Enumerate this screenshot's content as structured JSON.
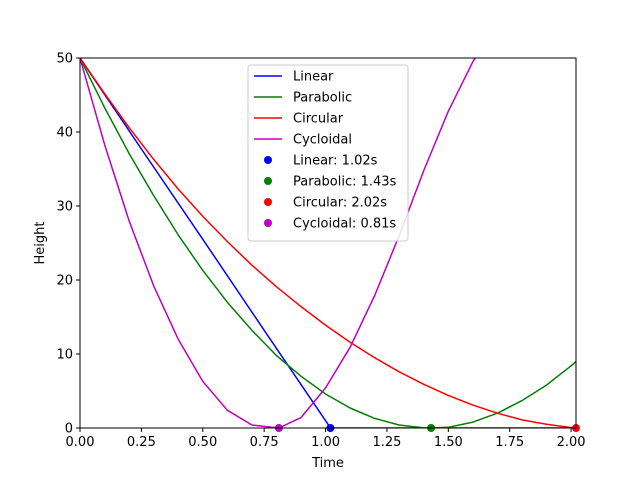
{
  "chart_data": {
    "type": "line",
    "title": "",
    "xlabel": "Time",
    "ylabel": "Height",
    "xlim": [
      0,
      2.02
    ],
    "ylim": [
      0,
      50
    ],
    "xticks": [
      "0.00",
      "0.25",
      "0.50",
      "0.75",
      "1.00",
      "1.25",
      "1.50",
      "1.75",
      "2.00"
    ],
    "yticks": [
      "0",
      "10",
      "20",
      "30",
      "40",
      "50"
    ],
    "grid": false,
    "legend_position": "top-center",
    "series": [
      {
        "name": "Linear",
        "color": "#0000ff",
        "x": [
          0,
          0.25,
          0.5,
          0.75,
          1.0,
          1.02,
          1.5,
          2.02
        ],
        "y": [
          50,
          37.7,
          25.5,
          13.2,
          1.0,
          0,
          0,
          0
        ]
      },
      {
        "name": "Parabolic",
        "color": "#008000",
        "x": [
          0,
          0.1,
          0.2,
          0.3,
          0.4,
          0.5,
          0.6,
          0.7,
          0.8,
          0.9,
          1.0,
          1.1,
          1.2,
          1.3,
          1.4,
          1.43,
          1.5,
          1.6,
          1.7,
          1.8,
          1.9,
          2.0,
          2.02
        ],
        "y": [
          50,
          43.3,
          37.1,
          31.4,
          26.1,
          21.3,
          17.0,
          13.2,
          9.8,
          7.0,
          4.6,
          2.7,
          1.3,
          0.4,
          0.02,
          0,
          0.1,
          0.8,
          2.0,
          3.7,
          5.8,
          8.4,
          9.0
        ]
      },
      {
        "name": "Circular",
        "color": "#ff0000",
        "x": [
          0,
          0.1,
          0.2,
          0.3,
          0.4,
          0.5,
          0.6,
          0.7,
          0.8,
          0.9,
          1.0,
          1.1,
          1.2,
          1.3,
          1.4,
          1.5,
          1.6,
          1.7,
          1.8,
          1.9,
          2.0,
          2.02
        ],
        "y": [
          50,
          45.2,
          40.6,
          36.3,
          32.3,
          28.6,
          25.2,
          22.0,
          19.1,
          16.4,
          13.9,
          11.6,
          9.5,
          7.6,
          5.9,
          4.4,
          3.1,
          2.0,
          1.1,
          0.5,
          0.05,
          0
        ]
      },
      {
        "name": "Cycloidal",
        "color": "#bf00bf",
        "x": [
          0,
          0.1,
          0.2,
          0.3,
          0.4,
          0.5,
          0.6,
          0.7,
          0.81,
          0.9,
          1.0,
          1.1,
          1.2,
          1.3,
          1.4,
          1.5,
          1.6,
          1.61
        ],
        "y": [
          50,
          38.3,
          28.0,
          19.2,
          12.0,
          6.3,
          2.4,
          0.4,
          0,
          1.4,
          5.4,
          10.9,
          17.9,
          26.0,
          34.8,
          42.8,
          49.5,
          50
        ]
      }
    ],
    "markers": [
      {
        "name": "Linear: 1.02s",
        "color": "#0000ff",
        "x": 1.02,
        "y": 0
      },
      {
        "name": "Parabolic: 1.43s",
        "color": "#008000",
        "x": 1.43,
        "y": 0
      },
      {
        "name": "Circular: 2.02s",
        "color": "#ff0000",
        "x": 2.02,
        "y": 0
      },
      {
        "name": "Cycloidal: 0.81s",
        "color": "#bf00bf",
        "x": 0.81,
        "y": 0
      }
    ]
  }
}
